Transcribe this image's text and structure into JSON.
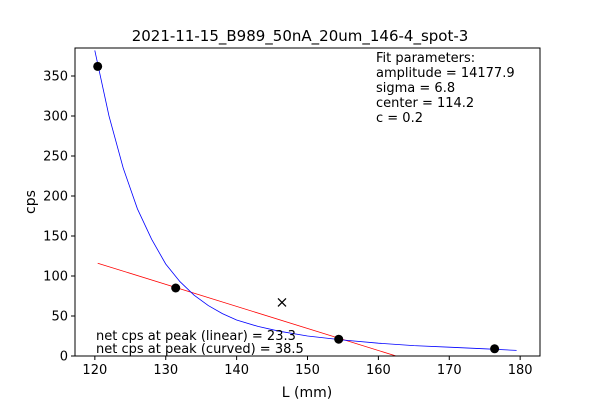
{
  "chart_data": {
    "type": "scatter",
    "title": "2021-11-15_B989_50nA_20um_146-4_spot-3",
    "xlabel": "L (mm)",
    "ylabel": "cps",
    "xlim": [
      117.2,
      182.8
    ],
    "ylim": [
      0,
      385
    ],
    "x_ticks": [
      120,
      130,
      140,
      150,
      160,
      170,
      180
    ],
    "y_ticks": [
      0,
      50,
      100,
      150,
      200,
      250,
      300,
      350
    ],
    "grid": false,
    "series": [
      {
        "kind": "points",
        "marker": "circle",
        "color": "#000000",
        "x": [
          120.4,
          131.4,
          154.4,
          176.4
        ],
        "y": [
          362,
          85,
          21,
          9
        ]
      },
      {
        "kind": "marker",
        "marker": "x",
        "color": "#000000",
        "x": [
          146.4
        ],
        "y": [
          67
        ]
      },
      {
        "kind": "line",
        "color": "#ff0000",
        "x": [
          120.4,
          162.5
        ],
        "y": [
          116,
          0
        ]
      },
      {
        "kind": "curve",
        "color": "#0000ff",
        "x": [
          120.0,
          122,
          124,
          126,
          128,
          130,
          132,
          134,
          136,
          138,
          140,
          143,
          146,
          150,
          155,
          160,
          165,
          170,
          175,
          179.5
        ],
        "y": [
          382,
          300,
          235,
          184,
          146,
          115,
          93,
          76,
          63,
          53,
          45,
          37,
          31,
          25,
          20,
          16,
          13,
          11,
          9,
          7
        ]
      }
    ],
    "fit_parameters": [
      "Fit parameters:",
      "amplitude = 14177.9",
      "sigma = 6.8",
      "center = 114.2",
      "c = 0.2"
    ],
    "net_cps": [
      "net cps at peak (linear) = 23.3",
      "net cps at peak (curved) = 38.5"
    ]
  }
}
